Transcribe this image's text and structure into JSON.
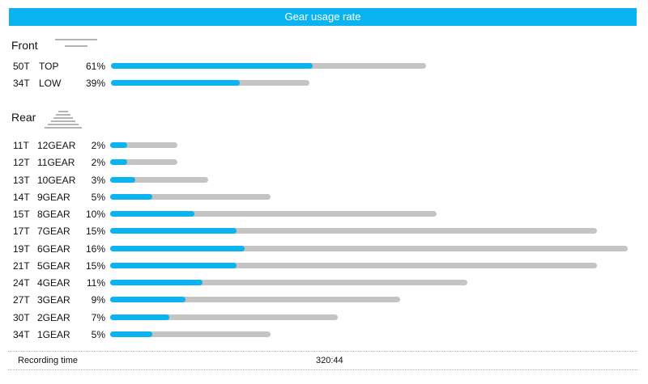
{
  "title": "Gear usage rate",
  "front": {
    "label": "Front",
    "icon": "front-chainrings-icon",
    "rows": [
      {
        "teeth": "50T",
        "gear": "TOP",
        "percent": "61%",
        "usage_fraction": 0.61,
        "range_fraction": 1.0
      },
      {
        "teeth": "34T",
        "gear": "LOW",
        "percent": "39%",
        "usage_fraction": 0.39,
        "range_fraction": 0.63
      }
    ]
  },
  "rear": {
    "label": "Rear",
    "icon": "rear-cassette-icon",
    "rows": [
      {
        "teeth": "11T",
        "gear": "12GEAR",
        "percent": "2%",
        "usage_fraction": 0.02,
        "range_fraction": 0.13
      },
      {
        "teeth": "12T",
        "gear": "11GEAR",
        "percent": "2%",
        "usage_fraction": 0.02,
        "range_fraction": 0.13
      },
      {
        "teeth": "13T",
        "gear": "10GEAR",
        "percent": "3%",
        "usage_fraction": 0.03,
        "range_fraction": 0.19
      },
      {
        "teeth": "14T",
        "gear": "9GEAR",
        "percent": "5%",
        "usage_fraction": 0.05,
        "range_fraction": 0.31
      },
      {
        "teeth": "15T",
        "gear": "8GEAR",
        "percent": "10%",
        "usage_fraction": 0.1,
        "range_fraction": 0.63
      },
      {
        "teeth": "17T",
        "gear": "7GEAR",
        "percent": "15%",
        "usage_fraction": 0.15,
        "range_fraction": 0.94
      },
      {
        "teeth": "19T",
        "gear": "6GEAR",
        "percent": "16%",
        "usage_fraction": 0.16,
        "range_fraction": 1.0
      },
      {
        "teeth": "21T",
        "gear": "5GEAR",
        "percent": "15%",
        "usage_fraction": 0.15,
        "range_fraction": 0.94
      },
      {
        "teeth": "24T",
        "gear": "4GEAR",
        "percent": "11%",
        "usage_fraction": 0.11,
        "range_fraction": 0.69
      },
      {
        "teeth": "27T",
        "gear": "3GEAR",
        "percent": "9%",
        "usage_fraction": 0.09,
        "range_fraction": 0.56
      },
      {
        "teeth": "30T",
        "gear": "2GEAR",
        "percent": "7%",
        "usage_fraction": 0.07,
        "range_fraction": 0.44
      },
      {
        "teeth": "34T",
        "gear": "1GEAR",
        "percent": "5%",
        "usage_fraction": 0.05,
        "range_fraction": 0.31
      }
    ]
  },
  "footer": {
    "label": "Recording time",
    "value": "320:44"
  },
  "colors": {
    "accent": "#0ab4f0",
    "track": "#c4c4c4",
    "icon": "#b4b4b4"
  }
}
